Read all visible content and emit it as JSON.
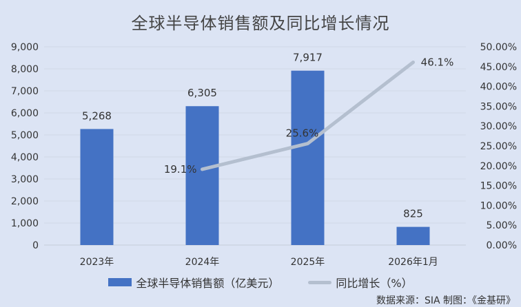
{
  "title": "全球半导体销售额及同比增长情况",
  "source": "数据来源：SIA   制图：《金基研》",
  "colors": {
    "bar": "#4472c4",
    "line": "#b4bfcf",
    "background": "#dce4f4"
  },
  "chart_data": {
    "type": "bar+line",
    "title": "全球半导体销售额及同比增长情况",
    "categories": [
      "2023年",
      "2024年",
      "2025年",
      "2026年1月"
    ],
    "series": [
      {
        "name": "全球半导体销售额（亿美元）",
        "type": "bar",
        "axis": "left",
        "values": [
          5268,
          6305,
          7917,
          825
        ],
        "labels": [
          "5,268",
          "6,305",
          "7,917",
          "825"
        ]
      },
      {
        "name": "同比增长（%）",
        "type": "line",
        "axis": "right",
        "values": [
          null,
          19.1,
          25.6,
          46.1
        ],
        "labels": [
          null,
          "19.1%",
          "25.6%",
          "46.1%"
        ]
      }
    ],
    "y_left": {
      "range": [
        0,
        9000
      ],
      "ticks": [
        "0",
        "1,000",
        "2,000",
        "3,000",
        "4,000",
        "5,000",
        "6,000",
        "7,000",
        "8,000",
        "9,000"
      ]
    },
    "y_right": {
      "range": [
        0,
        50
      ],
      "ticks": [
        "0.00%",
        "5.00%",
        "10.00%",
        "15.00%",
        "20.00%",
        "25.00%",
        "30.00%",
        "35.00%",
        "40.00%",
        "45.00%",
        "50.00%"
      ]
    },
    "grid": true,
    "legend": "bottom"
  }
}
